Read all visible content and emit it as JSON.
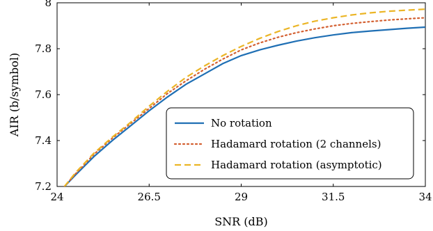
{
  "chart_data": {
    "type": "line",
    "title": "",
    "xlabel": "SNR (dB)",
    "ylabel": "AIR (b/symbol)",
    "xlim": [
      24,
      34
    ],
    "ylim": [
      7.2,
      8.0
    ],
    "xticks": [
      24,
      26.5,
      29,
      31.5,
      34
    ],
    "xtick_labels": [
      "24",
      "26.5",
      "29",
      "31.5",
      "34"
    ],
    "yticks": [
      7.2,
      7.4,
      7.6,
      7.8,
      8.0
    ],
    "ytick_labels": [
      "7.2",
      "7.4",
      "7.6",
      "7.8",
      "8"
    ],
    "grid": false,
    "legend_position": "bottom-right",
    "series": [
      {
        "name": "No rotation",
        "color": "#1f6fb4",
        "style": "solid",
        "x": [
          24.2,
          24.5,
          25,
          25.5,
          26,
          26.5,
          27,
          27.5,
          28,
          28.5,
          29,
          29.5,
          30,
          30.5,
          31,
          31.5,
          32,
          32.5,
          33,
          33.5,
          34
        ],
        "y": [
          7.2,
          7.25,
          7.33,
          7.4,
          7.465,
          7.53,
          7.59,
          7.645,
          7.69,
          7.735,
          7.77,
          7.795,
          7.815,
          7.833,
          7.848,
          7.86,
          7.87,
          7.877,
          7.883,
          7.889,
          7.894
        ]
      },
      {
        "name": "Hadamard rotation (2 channels)",
        "color": "#d35f30",
        "style": "dotted",
        "x": [
          24.2,
          24.5,
          25,
          25.5,
          26,
          26.5,
          27,
          27.5,
          28,
          28.5,
          29,
          29.5,
          30,
          30.5,
          31,
          31.5,
          32,
          32.5,
          33,
          33.5,
          34
        ],
        "y": [
          7.2,
          7.255,
          7.34,
          7.41,
          7.475,
          7.54,
          7.605,
          7.66,
          7.71,
          7.755,
          7.795,
          7.825,
          7.85,
          7.87,
          7.886,
          7.9,
          7.91,
          7.918,
          7.925,
          7.93,
          7.935
        ]
      },
      {
        "name": "Hadamard rotation (asymptotic)",
        "color": "#ebb526",
        "style": "dashed",
        "x": [
          24.2,
          24.5,
          25,
          25.5,
          26,
          26.5,
          27,
          27.5,
          28,
          28.5,
          29,
          29.5,
          30,
          30.5,
          31,
          31.5,
          32,
          32.5,
          33,
          33.5,
          34
        ],
        "y": [
          7.2,
          7.26,
          7.345,
          7.415,
          7.48,
          7.55,
          7.615,
          7.675,
          7.725,
          7.77,
          7.81,
          7.845,
          7.875,
          7.9,
          7.92,
          7.935,
          7.947,
          7.956,
          7.963,
          7.968,
          7.972
        ]
      }
    ]
  }
}
